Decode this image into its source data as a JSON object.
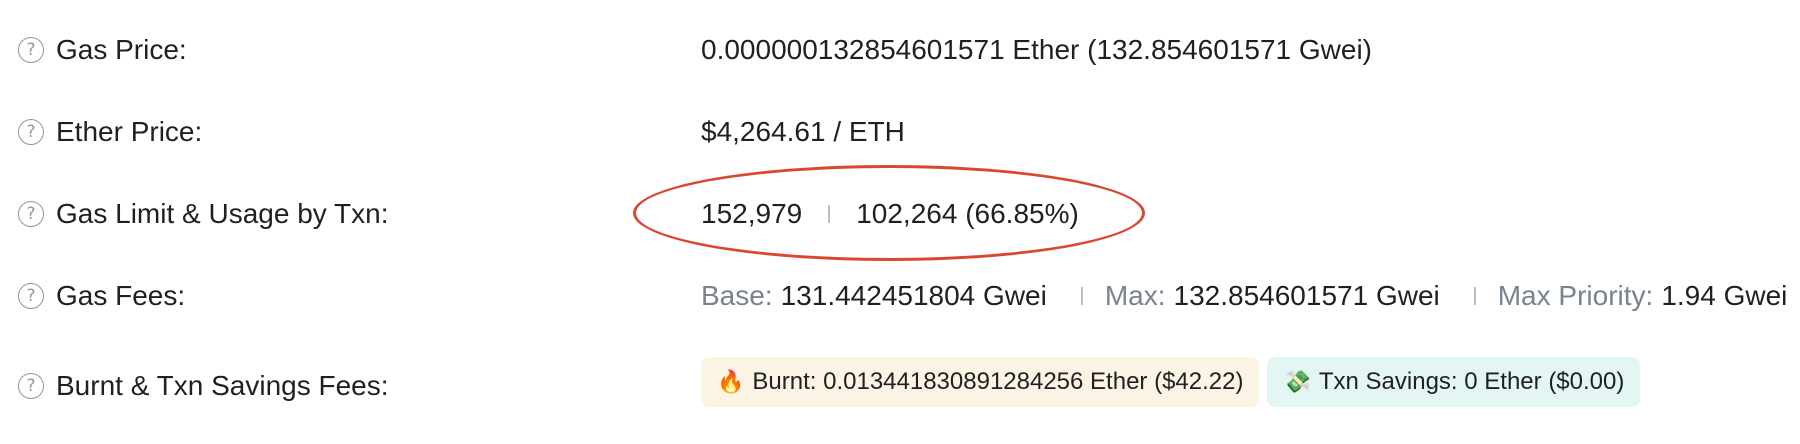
{
  "rows": {
    "gas_price": {
      "label": "Gas Price:",
      "value": "0.000000132854601571 Ether (132.854601571 Gwei)"
    },
    "ether_price": {
      "label": "Ether Price:",
      "value": "$4,264.61 / ETH"
    },
    "gas_limit": {
      "label": "Gas Limit & Usage by Txn:",
      "limit": "152,979",
      "usage": "102,264 (66.85%)"
    },
    "gas_fees": {
      "label": "Gas Fees:",
      "base_label": "Base:",
      "base_value": "131.442451804 Gwei",
      "max_label": "Max:",
      "max_value": "132.854601571 Gwei",
      "priority_label": "Max Priority:",
      "priority_value": "1.94 Gwei"
    },
    "burnt_fees": {
      "label": "Burnt & Txn Savings Fees:",
      "burnt_icon": "🔥",
      "burnt_text": "Burnt: 0.013441830891284256 Ether ($42.22)",
      "savings_icon": "💸",
      "savings_text": "Txn Savings: 0 Ether ($0.00)"
    }
  },
  "help_icon_glyph": "?",
  "icons": {
    "help": "question-circle-icon",
    "burnt": "fire-icon",
    "savings": "money-wings-icon"
  },
  "colors": {
    "annotation_ellipse": "#d9472e",
    "burnt_badge_bg": "#fbf3e3",
    "savings_badge_bg": "#e4f6f4",
    "muted_text": "#77838f"
  }
}
